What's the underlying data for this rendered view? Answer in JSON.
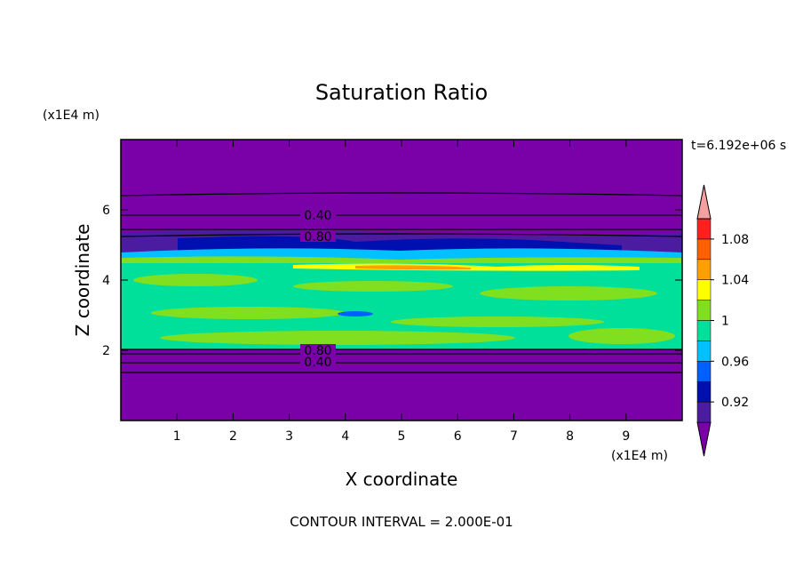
{
  "chart_data": {
    "type": "contour",
    "title": "Saturation Ratio",
    "x_label": "X coordinate",
    "y_label": "Z coordinate",
    "x_unit": "(x1E4 m)",
    "y_unit": "(x1E4 m)",
    "time_label": "t=6.192e+06 s",
    "footer": "CONTOUR INTERVAL = 2.000E-01",
    "xlim": [
      0,
      10
    ],
    "xticks": [
      1,
      2,
      3,
      4,
      5,
      6,
      7,
      8,
      9
    ],
    "ylim": [
      0,
      8
    ],
    "yticks": [
      2,
      4,
      6
    ],
    "contour_labels": [
      "0.40",
      "0.80",
      "0.80",
      "0.40"
    ],
    "colorbar": {
      "levels": [
        0.9,
        0.92,
        0.94,
        0.96,
        0.98,
        1,
        1.02,
        1.04,
        1.06,
        1.08,
        1.1
      ],
      "colors": [
        "#7a00a8",
        "#4c1ca0",
        "#0010b0",
        "#0060ff",
        "#00c0ff",
        "#00e09a",
        "#80e020",
        "#ffff00",
        "#ffa000",
        "#ff6000",
        "#ff2020",
        "#f4a0a0"
      ],
      "ticks": [
        0.92,
        0.96,
        1,
        1.04,
        1.08
      ]
    }
  }
}
